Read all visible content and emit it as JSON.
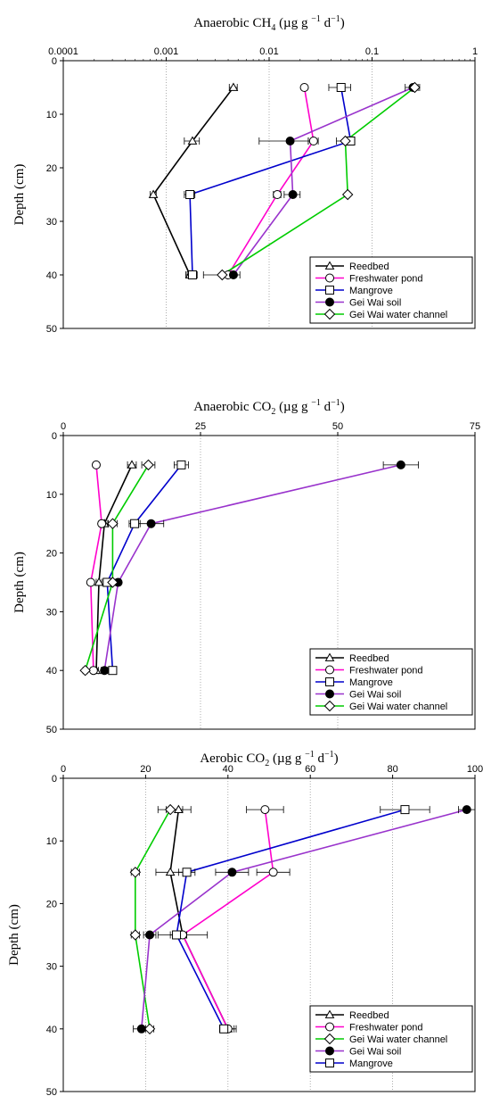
{
  "chart_data": [
    {
      "type": "line",
      "title_main": "Anaerobic CH",
      "title_sub": "4",
      "title_units": "(µg g",
      "title_exp1": "−1",
      "title_d": "d",
      "title_exp2": "−1",
      "title_close": ")",
      "xscale": "log",
      "xlim": [
        0.0001,
        1
      ],
      "xticks": [
        0.0001,
        0.001,
        0.01,
        0.1,
        1
      ],
      "xtick_labels": [
        "0.0001",
        "0.001",
        "0.01",
        "0.1",
        "1"
      ],
      "ylabel": "Depth (cm)",
      "ylim": [
        0,
        50
      ],
      "yticks": [
        0,
        10,
        20,
        30,
        40,
        50
      ],
      "ytick_labels": [
        "0",
        "10",
        "20",
        "30",
        "40",
        "50"
      ],
      "grid": "vertical dotted",
      "legend_position": "bottom-right",
      "series": [
        {
          "name": "Reedbed",
          "color": "#000000",
          "marker": "triangle",
          "depth": [
            5,
            15,
            25,
            40
          ],
          "values": [
            0.0045,
            0.0018,
            0.00075,
            0.0017
          ],
          "err": [
            0.0004,
            0.0003,
            5e-05,
            0.00015
          ]
        },
        {
          "name": "Freshwater pond",
          "color": "#ff00cc",
          "marker": "circle-open",
          "depth": [
            5,
            15,
            25,
            40
          ],
          "values": [
            0.022,
            0.027,
            0.012,
            0.004
          ],
          "err": [
            0.001,
            0.003,
            0.001,
            0.0004
          ]
        },
        {
          "name": "Mangrove",
          "color": "#0000cc",
          "marker": "square-open",
          "depth": [
            5,
            15,
            25,
            40
          ],
          "values": [
            0.05,
            0.062,
            0.0017,
            0.0018
          ],
          "err": [
            0.012,
            0.006,
            0.0002,
            0.0002
          ]
        },
        {
          "name": "Gei Wai soil",
          "color": "#000000",
          "line": "#9933cc",
          "marker": "circle-filled",
          "depth": [
            5,
            15,
            25,
            40
          ],
          "values": [
            0.25,
            0.016,
            0.017,
            0.0045
          ],
          "err": [
            0.04,
            0.008,
            0.003,
            0.0007
          ]
        },
        {
          "name": "Gei Wai water channel",
          "color": "#00cc00",
          "marker": "diamond",
          "depth": [
            5,
            15,
            25,
            40
          ],
          "values": [
            0.26,
            0.055,
            0.058,
            0.0035
          ],
          "err": [
            0.02,
            0.01,
            0.002,
            0.0012
          ]
        }
      ]
    },
    {
      "type": "line",
      "title_main": "Anaerobic CO",
      "title_sub": "2",
      "title_units": "(µg g",
      "title_exp1": "−1",
      "title_d": "d",
      "title_exp2": "−1",
      "title_close": ")",
      "xscale": "linear",
      "xlim": [
        0,
        75
      ],
      "xticks": [
        0,
        25,
        50,
        75
      ],
      "xtick_labels": [
        "0",
        "25",
        "50",
        "75"
      ],
      "ylabel": "Depth (cm)",
      "ylim": [
        0,
        50
      ],
      "yticks": [
        0,
        10,
        20,
        30,
        40,
        50
      ],
      "ytick_labels": [
        "0",
        "10",
        "20",
        "30",
        "40",
        "50"
      ],
      "grid": "vertical dotted",
      "legend_position": "bottom-right",
      "series": [
        {
          "name": "Reedbed",
          "color": "#000000",
          "marker": "triangle",
          "depth": [
            5,
            15,
            25,
            40
          ],
          "values": [
            12.5,
            7.5,
            6.5,
            6
          ],
          "err": [
            0.8,
            0.6,
            0.5,
            0.4
          ]
        },
        {
          "name": "Freshwater pond",
          "color": "#ff00cc",
          "marker": "circle-open",
          "depth": [
            5,
            15,
            25,
            40
          ],
          "values": [
            6,
            7,
            5,
            5.5
          ],
          "err": [
            0.3,
            0.4,
            0.3,
            0.3
          ]
        },
        {
          "name": "Mangrove",
          "color": "#0000cc",
          "marker": "square-open",
          "depth": [
            5,
            15,
            25,
            40
          ],
          "values": [
            21.5,
            13,
            8,
            9
          ],
          "err": [
            1.3,
            1.0,
            0.6,
            0.5
          ]
        },
        {
          "name": "Gei Wai soil",
          "color": "#000000",
          "line": "#9933cc",
          "marker": "circle-filled",
          "depth": [
            5,
            15,
            25,
            40
          ],
          "values": [
            61.5,
            16,
            10,
            7.5
          ],
          "err": [
            3.2,
            2.3,
            0.5,
            0.6
          ]
        },
        {
          "name": "Gei Wai water channel",
          "color": "#00cc00",
          "marker": "diamond",
          "depth": [
            5,
            15,
            25,
            40
          ],
          "values": [
            15.5,
            9,
            9,
            4
          ],
          "err": [
            1.2,
            0.8,
            0.6,
            0.4
          ]
        }
      ]
    },
    {
      "type": "line",
      "title_main": "Aerobic CO",
      "title_sub": "2",
      "title_units": "(µg g",
      "title_exp1": "−1",
      "title_d": "d",
      "title_exp2": "−1",
      "title_close": ")",
      "xscale": "linear",
      "xlim": [
        0,
        100
      ],
      "xticks": [
        0,
        20,
        40,
        60,
        80,
        100
      ],
      "xtick_labels": [
        "0",
        "20",
        "40",
        "60",
        "80",
        "100"
      ],
      "ylabel": "Depth (cm)",
      "ylim": [
        0,
        50
      ],
      "yticks": [
        0,
        10,
        20,
        30,
        40,
        50
      ],
      "ytick_labels": [
        "0",
        "10",
        "20",
        "30",
        "40",
        "50"
      ],
      "grid": "vertical dotted",
      "legend_position": "bottom-right",
      "series": [
        {
          "name": "Reedbed",
          "color": "#000000",
          "marker": "triangle",
          "depth": [
            5,
            15,
            25,
            40
          ],
          "values": [
            28,
            26,
            29,
            40
          ],
          "err": [
            3,
            3.5,
            6,
            2
          ]
        },
        {
          "name": "Freshwater pond",
          "color": "#ff00cc",
          "marker": "circle-open",
          "depth": [
            5,
            15,
            25,
            40
          ],
          "values": [
            49,
            51,
            29,
            40
          ],
          "err": [
            4.5,
            4,
            1,
            1.5
          ]
        },
        {
          "name": "Gei Wai water channel",
          "color": "#00cc00",
          "marker": "diamond",
          "depth": [
            5,
            15,
            25,
            40
          ],
          "values": [
            26,
            17.5,
            17.5,
            21
          ],
          "err": [
            3,
            1,
            1,
            1
          ]
        },
        {
          "name": "Gei Wai soil",
          "color": "#000000",
          "line": "#9933cc",
          "marker": "circle-filled",
          "depth": [
            5,
            15,
            25,
            40
          ],
          "values": [
            98,
            41,
            21,
            19
          ],
          "err": [
            2,
            4,
            1.5,
            2
          ]
        },
        {
          "name": "Mangrove",
          "color": "#0000cc",
          "marker": "square-open",
          "depth": [
            5,
            15,
            25,
            40
          ],
          "values": [
            83,
            30,
            27.5,
            39
          ],
          "err": [
            6,
            2,
            1.5,
            1
          ]
        }
      ]
    }
  ]
}
